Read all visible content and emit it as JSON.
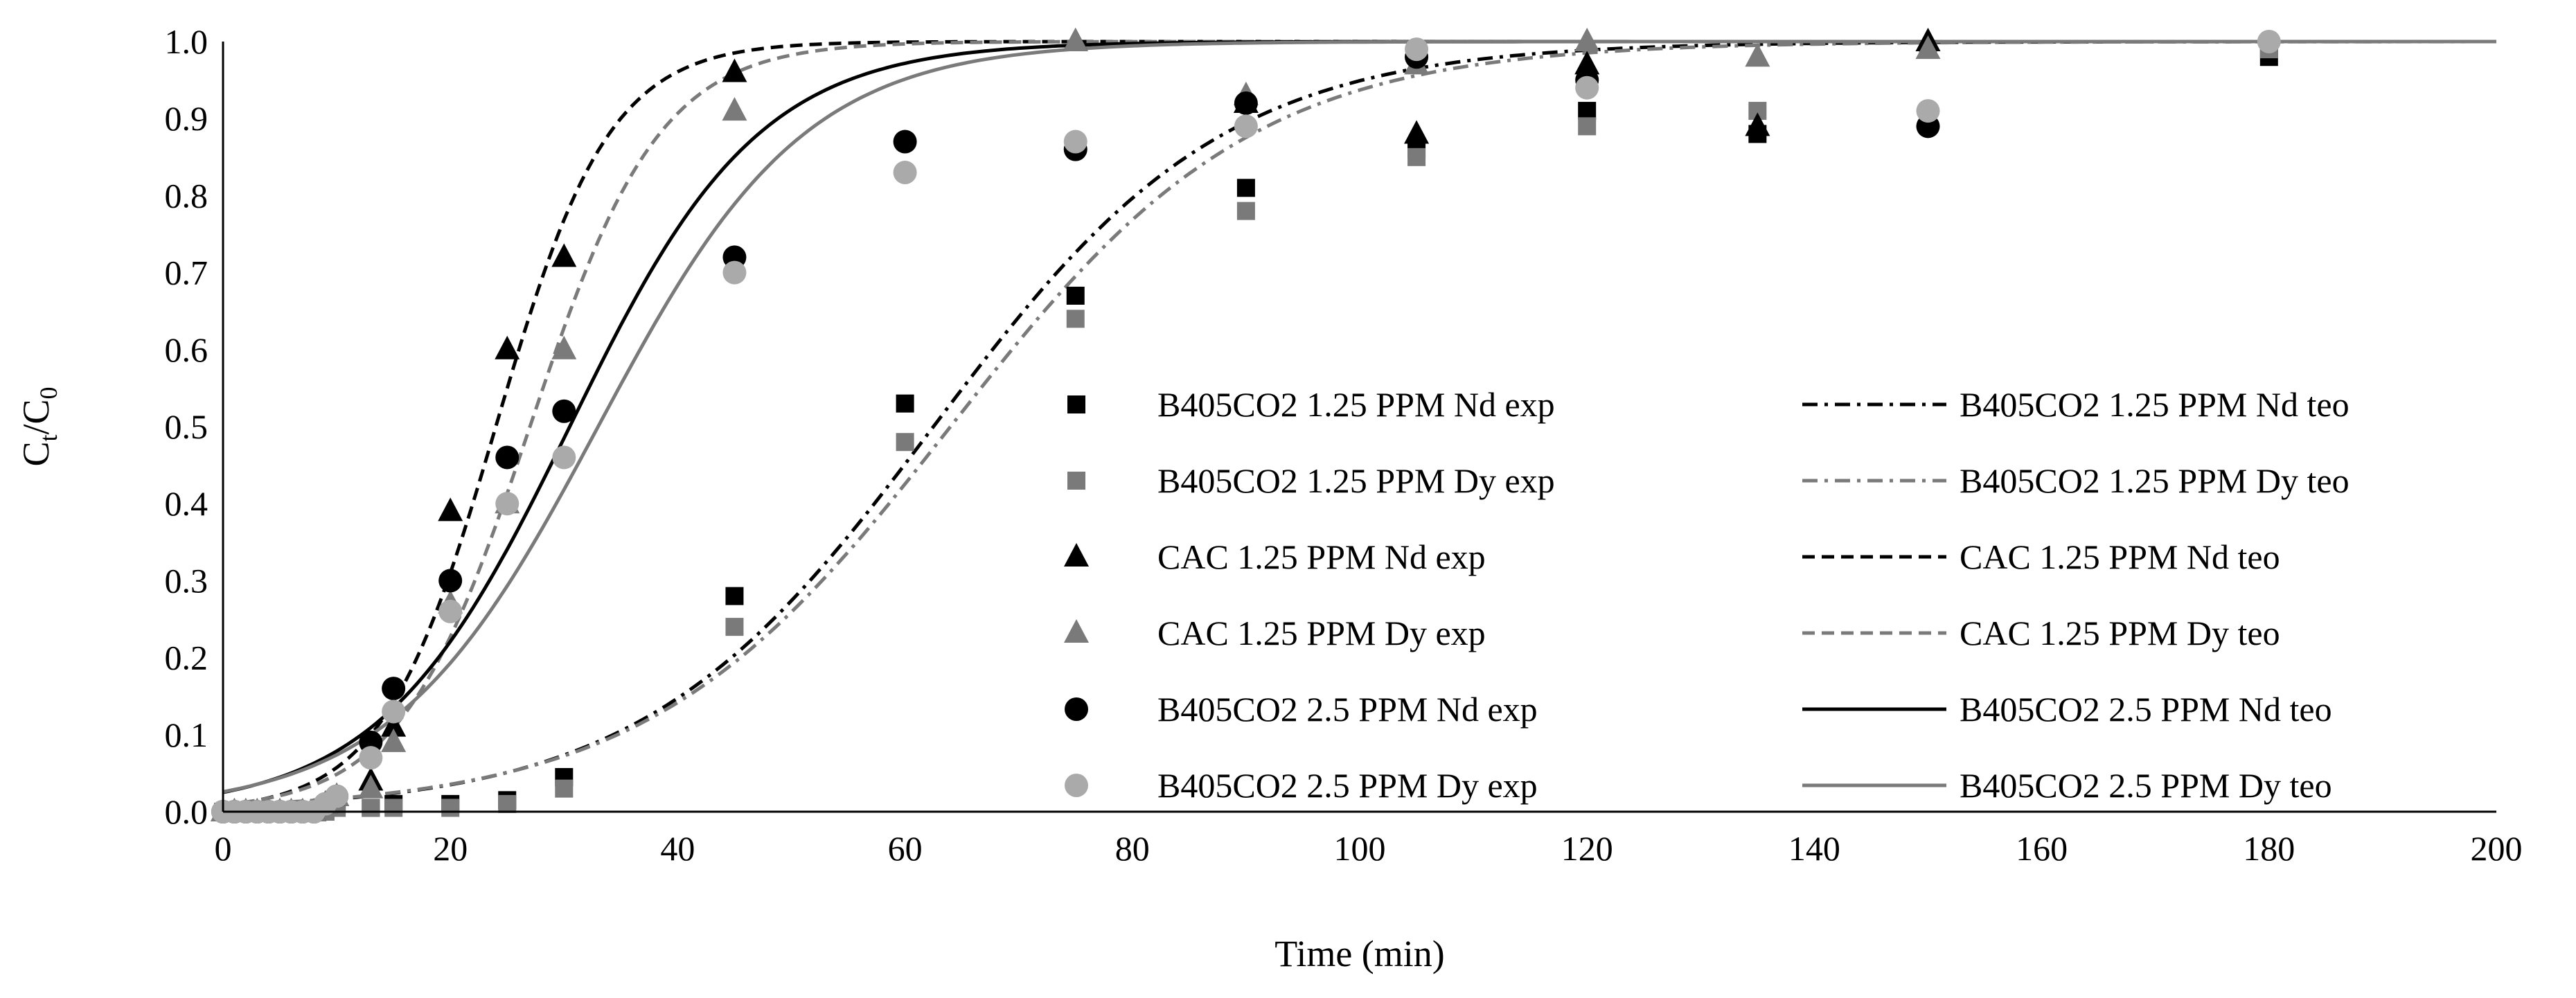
{
  "chart_data": {
    "type": "scatter",
    "xlabel": "Time (min)",
    "ylabel_main": "C",
    "ylabel_sub1": "t",
    "ylabel_slash": "/C",
    "ylabel_sub2": "0",
    "xlim": [
      0,
      200
    ],
    "ylim": [
      0,
      1.0
    ],
    "xticks": [
      "0",
      "20",
      "40",
      "60",
      "80",
      "100",
      "120",
      "140",
      "160",
      "180",
      "200"
    ],
    "yticks": [
      "0.0",
      "0.1",
      "0.2",
      "0.3",
      "0.4",
      "0.5",
      "0.6",
      "0.7",
      "0.8",
      "0.9",
      "1.0"
    ],
    "grid": false,
    "legend_position": "center-right",
    "colors": {
      "black": "#000000",
      "gray": "#7a7a7a",
      "lightgray": "#aaaaaa"
    },
    "experimental_series": [
      {
        "name": "B405CO2 1.25 PPM Nd exp",
        "marker": "square",
        "color": "#000000",
        "x": [
          0,
          1,
          2,
          3,
          4,
          5,
          6,
          7,
          8,
          9,
          10,
          13,
          15,
          20,
          25,
          30,
          45,
          60,
          75,
          90,
          105,
          120,
          135,
          150,
          180
        ],
        "y": [
          0,
          0,
          0,
          0,
          0,
          0,
          0,
          0,
          0,
          0,
          0.01,
          0.005,
          0.01,
          0.01,
          0.015,
          0.045,
          0.28,
          0.53,
          0.67,
          0.81,
          0.86,
          0.91,
          0.88,
          0.99,
          0.98
        ]
      },
      {
        "name": "B405CO2 1.25 PPM Dy exp",
        "marker": "square",
        "color": "#7a7a7a",
        "x": [
          0,
          1,
          2,
          3,
          4,
          5,
          6,
          7,
          8,
          9,
          10,
          13,
          15,
          20,
          25,
          30,
          45,
          60,
          75,
          90,
          105,
          120,
          135,
          150,
          180
        ],
        "y": [
          0,
          0,
          0,
          0,
          0,
          0,
          0,
          0,
          0,
          0,
          0.005,
          0.005,
          0.005,
          0.005,
          0.01,
          0.03,
          0.24,
          0.48,
          0.64,
          0.78,
          0.85,
          0.89,
          0.91,
          0.99,
          0.99
        ]
      },
      {
        "name": "CAC 1.25 PPM Nd exp",
        "marker": "triangle",
        "color": "#000000",
        "x": [
          0,
          1,
          2,
          3,
          4,
          5,
          6,
          7,
          8,
          9,
          10,
          13,
          15,
          20,
          25,
          30,
          45,
          75,
          90,
          105,
          120,
          135,
          150
        ],
        "y": [
          0,
          0,
          0,
          0,
          0,
          0,
          0,
          0,
          0,
          0.01,
          0.02,
          0.04,
          0.11,
          0.39,
          0.6,
          0.72,
          0.96,
          1.0,
          0.92,
          0.88,
          0.97,
          0.89,
          1.0
        ]
      },
      {
        "name": "CAC 1.25 PPM Dy exp",
        "marker": "triangle",
        "color": "#7a7a7a",
        "x": [
          0,
          1,
          2,
          3,
          4,
          5,
          6,
          7,
          8,
          9,
          10,
          13,
          15,
          20,
          25,
          30,
          45,
          75,
          90,
          105,
          120,
          135,
          150
        ],
        "y": [
          0,
          0,
          0,
          0,
          0,
          0,
          0,
          0,
          0,
          0.01,
          0.02,
          0.03,
          0.09,
          0.27,
          0.4,
          0.6,
          0.91,
          1.0,
          0.93,
          0.97,
          1.0,
          0.98,
          0.99
        ]
      },
      {
        "name": "B405CO2 2.5 PPM Nd exp",
        "marker": "circle",
        "color": "#000000",
        "x": [
          0,
          1,
          2,
          3,
          4,
          5,
          6,
          7,
          8,
          9,
          10,
          13,
          15,
          20,
          25,
          30,
          45,
          60,
          75,
          90,
          105,
          120,
          150
        ],
        "y": [
          0,
          0,
          0,
          0,
          0,
          0,
          0,
          0,
          0,
          0.01,
          0.02,
          0.09,
          0.16,
          0.3,
          0.46,
          0.52,
          0.72,
          0.87,
          0.86,
          0.92,
          0.98,
          0.95,
          0.89
        ]
      },
      {
        "name": "B405CO2 2.5 PPM Dy exp",
        "marker": "circle",
        "color": "#aaaaaa",
        "x": [
          0,
          1,
          2,
          3,
          4,
          5,
          6,
          7,
          8,
          9,
          10,
          13,
          15,
          20,
          25,
          30,
          45,
          60,
          75,
          90,
          105,
          120,
          150,
          180
        ],
        "y": [
          0,
          0,
          0,
          0,
          0,
          0,
          0,
          0,
          0,
          0.01,
          0.02,
          0.07,
          0.13,
          0.26,
          0.4,
          0.46,
          0.7,
          0.83,
          0.87,
          0.89,
          0.99,
          0.94,
          0.91,
          1.0
        ]
      }
    ],
    "theoretical_series": [
      {
        "name": "B405CO2 1.25 PPM Nd teo",
        "color": "#000000",
        "dash": "dashdot",
        "model": "logistic",
        "k": 0.078,
        "t50": 62.5
      },
      {
        "name": "B405CO2 1.25 PPM Dy teo",
        "color": "#7a7a7a",
        "dash": "dashdot",
        "model": "logistic",
        "k": 0.075,
        "t50": 64
      },
      {
        "name": "CAC 1.25 PPM Nd teo",
        "color": "#000000",
        "dash": "dashed",
        "model": "logistic",
        "k": 0.2,
        "t50": 24
      },
      {
        "name": "CAC 1.25 PPM Dy teo",
        "color": "#7a7a7a",
        "dash": "dashed",
        "model": "logistic",
        "k": 0.175,
        "t50": 27
      },
      {
        "name": "B405CO2 2.5 PPM Nd teo",
        "color": "#000000",
        "dash": "solid",
        "model": "logistic",
        "k": 0.12,
        "t50": 30.5
      },
      {
        "name": "B405CO2 2.5 PPM Dy teo",
        "color": "#7a7a7a",
        "dash": "solid",
        "model": "logistic",
        "k": 0.11,
        "t50": 33
      }
    ]
  }
}
